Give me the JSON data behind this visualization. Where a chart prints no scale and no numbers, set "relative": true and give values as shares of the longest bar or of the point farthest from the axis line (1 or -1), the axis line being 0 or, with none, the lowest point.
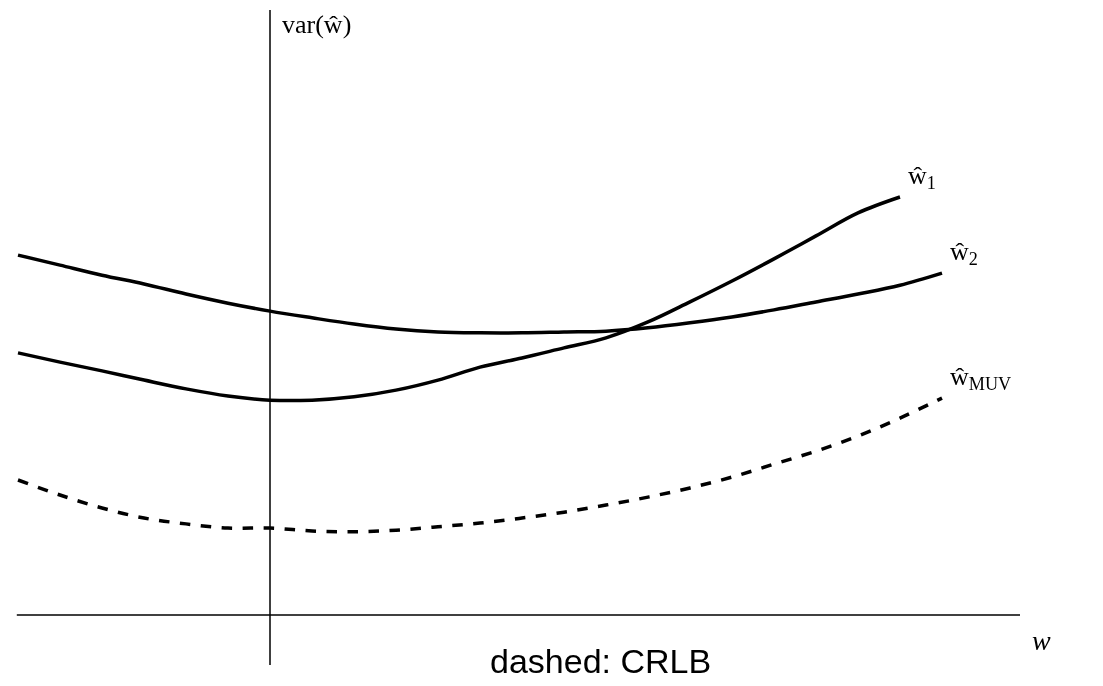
{
  "chart_data": {
    "type": "line",
    "relative": true,
    "xlabel": "w",
    "legend": false,
    "marker": "none",
    "categories": [
      null,
      null,
      null,
      null,
      null,
      null,
      null,
      null,
      null,
      null,
      null,
      null,
      null,
      null,
      null,
      null,
      null,
      null,
      null,
      null,
      null,
      null,
      null
    ],
    "series": [
      {
        "name": "ŵ$_{1}$",
        "color": "#000000",
        "line_style": "solid",
        "values": [
          0.627,
          0.605,
          0.584,
          0.562,
          0.541,
          0.524,
          0.514,
          0.514,
          0.522,
          0.538,
          0.562,
          0.593,
          0.615,
          0.639,
          0.663,
          0.701,
          0.749,
          0.799,
          0.852,
          0.907,
          0.962,
          1,
          null
        ]
      },
      {
        "name": "ŵ$_{2}$",
        "color": "#000000",
        "line_style": "solid",
        "values": [
          0.861,
          0.837,
          0.813,
          0.792,
          0.768,
          0.746,
          0.727,
          0.711,
          0.696,
          0.684,
          0.677,
          0.675,
          0.675,
          0.677,
          0.679,
          0.687,
          0.699,
          0.713,
          0.73,
          0.749,
          0.768,
          0.789,
          0.818
        ]
      },
      {
        "name": "ŵ$_{MUV}$",
        "color": "#000000",
        "line_style": "dashed",
        "values": [
          0.323,
          0.287,
          0.256,
          0.232,
          0.218,
          0.208,
          0.208,
          0.201,
          0.199,
          0.203,
          0.211,
          0.22,
          0.232,
          0.246,
          0.263,
          0.282,
          0.304,
          0.33,
          0.361,
          0.392,
          0.428,
          0.471,
          0.519
        ]
      }
    ],
    "annotations": [
      "var(ŵ)",
      "dashed: CRLB"
    ]
  }
}
